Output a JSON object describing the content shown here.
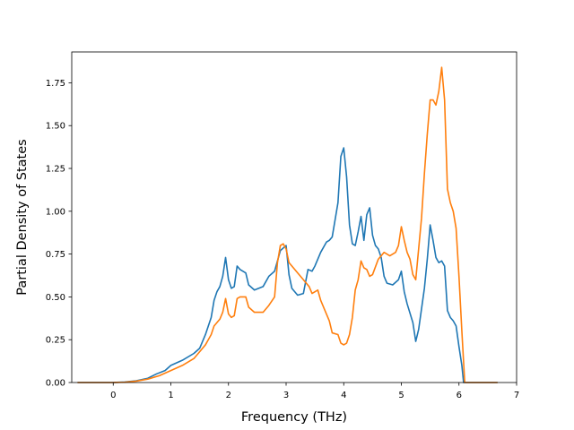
{
  "chart_data": {
    "type": "line",
    "title": "",
    "xlabel": "Frequency (THz)",
    "ylabel": "Partial Density of States",
    "xlim": [
      -0.72,
      7.0
    ],
    "ylim": [
      0.0,
      1.93
    ],
    "xticks": [
      0,
      1,
      2,
      3,
      4,
      5,
      6,
      7
    ],
    "yticks": [
      0.0,
      0.25,
      0.5,
      0.75,
      1.0,
      1.25,
      1.5,
      1.75
    ],
    "xtick_labels": [
      "0",
      "1",
      "2",
      "3",
      "4",
      "5",
      "6",
      "7"
    ],
    "ytick_labels": [
      "0.00",
      "0.25",
      "0.50",
      "0.75",
      "1.00",
      "1.25",
      "1.50",
      "1.75"
    ],
    "grid": false,
    "legend": "none",
    "series": [
      {
        "color": "#1f77b4",
        "points": [
          [
            -0.62,
            0.0
          ],
          [
            0.0,
            0.0
          ],
          [
            0.2,
            0.003
          ],
          [
            0.4,
            0.01
          ],
          [
            0.6,
            0.025
          ],
          [
            0.75,
            0.05
          ],
          [
            0.9,
            0.07
          ],
          [
            1.0,
            0.1
          ],
          [
            1.2,
            0.13
          ],
          [
            1.4,
            0.17
          ],
          [
            1.5,
            0.2
          ],
          [
            1.6,
            0.28
          ],
          [
            1.7,
            0.38
          ],
          [
            1.75,
            0.48
          ],
          [
            1.8,
            0.53
          ],
          [
            1.85,
            0.56
          ],
          [
            1.9,
            0.62
          ],
          [
            1.95,
            0.73
          ],
          [
            2.0,
            0.6
          ],
          [
            2.05,
            0.55
          ],
          [
            2.1,
            0.56
          ],
          [
            2.15,
            0.68
          ],
          [
            2.2,
            0.66
          ],
          [
            2.3,
            0.64
          ],
          [
            2.35,
            0.57
          ],
          [
            2.45,
            0.54
          ],
          [
            2.6,
            0.56
          ],
          [
            2.7,
            0.62
          ],
          [
            2.8,
            0.65
          ],
          [
            2.9,
            0.77
          ],
          [
            3.0,
            0.8
          ],
          [
            3.05,
            0.63
          ],
          [
            3.1,
            0.55
          ],
          [
            3.2,
            0.51
          ],
          [
            3.3,
            0.52
          ],
          [
            3.38,
            0.66
          ],
          [
            3.45,
            0.65
          ],
          [
            3.5,
            0.68
          ],
          [
            3.6,
            0.76
          ],
          [
            3.7,
            0.82
          ],
          [
            3.75,
            0.83
          ],
          [
            3.8,
            0.85
          ],
          [
            3.85,
            0.95
          ],
          [
            3.9,
            1.05
          ],
          [
            3.95,
            1.32
          ],
          [
            4.0,
            1.37
          ],
          [
            4.05,
            1.2
          ],
          [
            4.1,
            0.92
          ],
          [
            4.15,
            0.81
          ],
          [
            4.2,
            0.8
          ],
          [
            4.25,
            0.88
          ],
          [
            4.3,
            0.97
          ],
          [
            4.35,
            0.83
          ],
          [
            4.4,
            0.98
          ],
          [
            4.45,
            1.02
          ],
          [
            4.5,
            0.86
          ],
          [
            4.55,
            0.8
          ],
          [
            4.6,
            0.78
          ],
          [
            4.65,
            0.73
          ],
          [
            4.7,
            0.62
          ],
          [
            4.75,
            0.58
          ],
          [
            4.85,
            0.57
          ],
          [
            4.95,
            0.6
          ],
          [
            5.0,
            0.65
          ],
          [
            5.05,
            0.53
          ],
          [
            5.1,
            0.46
          ],
          [
            5.2,
            0.35
          ],
          [
            5.25,
            0.24
          ],
          [
            5.3,
            0.31
          ],
          [
            5.35,
            0.43
          ],
          [
            5.4,
            0.55
          ],
          [
            5.45,
            0.72
          ],
          [
            5.5,
            0.92
          ],
          [
            5.55,
            0.83
          ],
          [
            5.6,
            0.73
          ],
          [
            5.65,
            0.7
          ],
          [
            5.7,
            0.71
          ],
          [
            5.75,
            0.68
          ],
          [
            5.8,
            0.42
          ],
          [
            5.85,
            0.38
          ],
          [
            5.9,
            0.36
          ],
          [
            5.95,
            0.33
          ],
          [
            6.0,
            0.21
          ],
          [
            6.05,
            0.1
          ],
          [
            6.08,
            0.0
          ],
          [
            6.67,
            0.0
          ]
        ]
      },
      {
        "color": "#ff7f0e",
        "points": [
          [
            -0.62,
            0.0
          ],
          [
            0.0,
            0.0
          ],
          [
            0.2,
            0.002
          ],
          [
            0.4,
            0.008
          ],
          [
            0.6,
            0.02
          ],
          [
            0.8,
            0.04
          ],
          [
            1.0,
            0.07
          ],
          [
            1.2,
            0.1
          ],
          [
            1.4,
            0.14
          ],
          [
            1.5,
            0.18
          ],
          [
            1.6,
            0.22
          ],
          [
            1.7,
            0.28
          ],
          [
            1.75,
            0.33
          ],
          [
            1.85,
            0.37
          ],
          [
            1.9,
            0.41
          ],
          [
            1.95,
            0.49
          ],
          [
            2.0,
            0.4
          ],
          [
            2.05,
            0.38
          ],
          [
            2.1,
            0.39
          ],
          [
            2.15,
            0.49
          ],
          [
            2.2,
            0.5
          ],
          [
            2.3,
            0.5
          ],
          [
            2.35,
            0.44
          ],
          [
            2.45,
            0.41
          ],
          [
            2.6,
            0.41
          ],
          [
            2.7,
            0.45
          ],
          [
            2.8,
            0.5
          ],
          [
            2.85,
            0.7
          ],
          [
            2.9,
            0.8
          ],
          [
            2.95,
            0.81
          ],
          [
            3.0,
            0.78
          ],
          [
            3.05,
            0.7
          ],
          [
            3.2,
            0.64
          ],
          [
            3.3,
            0.6
          ],
          [
            3.4,
            0.56
          ],
          [
            3.45,
            0.52
          ],
          [
            3.55,
            0.54
          ],
          [
            3.6,
            0.48
          ],
          [
            3.7,
            0.4
          ],
          [
            3.75,
            0.36
          ],
          [
            3.8,
            0.29
          ],
          [
            3.9,
            0.28
          ],
          [
            3.95,
            0.23
          ],
          [
            4.0,
            0.22
          ],
          [
            4.05,
            0.23
          ],
          [
            4.1,
            0.28
          ],
          [
            4.15,
            0.38
          ],
          [
            4.2,
            0.54
          ],
          [
            4.25,
            0.6
          ],
          [
            4.3,
            0.71
          ],
          [
            4.35,
            0.67
          ],
          [
            4.4,
            0.66
          ],
          [
            4.45,
            0.62
          ],
          [
            4.5,
            0.63
          ],
          [
            4.6,
            0.72
          ],
          [
            4.7,
            0.76
          ],
          [
            4.8,
            0.74
          ],
          [
            4.9,
            0.76
          ],
          [
            4.95,
            0.8
          ],
          [
            5.0,
            0.91
          ],
          [
            5.05,
            0.83
          ],
          [
            5.1,
            0.76
          ],
          [
            5.15,
            0.72
          ],
          [
            5.2,
            0.63
          ],
          [
            5.25,
            0.6
          ],
          [
            5.3,
            0.78
          ],
          [
            5.35,
            0.96
          ],
          [
            5.4,
            1.22
          ],
          [
            5.45,
            1.45
          ],
          [
            5.5,
            1.65
          ],
          [
            5.55,
            1.65
          ],
          [
            5.6,
            1.62
          ],
          [
            5.65,
            1.7
          ],
          [
            5.7,
            1.84
          ],
          [
            5.75,
            1.65
          ],
          [
            5.8,
            1.13
          ],
          [
            5.85,
            1.05
          ],
          [
            5.9,
            1.0
          ],
          [
            5.95,
            0.9
          ],
          [
            6.0,
            0.62
          ],
          [
            6.05,
            0.3
          ],
          [
            6.1,
            0.0
          ],
          [
            6.67,
            0.0
          ]
        ]
      }
    ]
  }
}
